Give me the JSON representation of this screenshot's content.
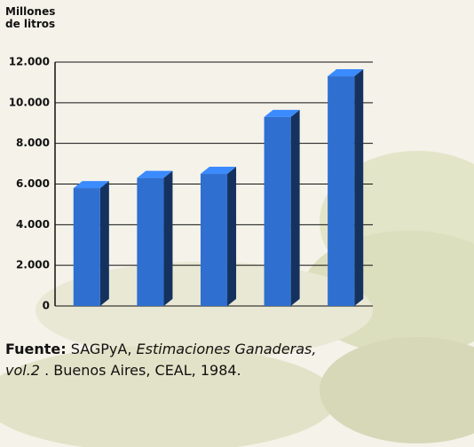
{
  "chart_data": {
    "type": "bar3d",
    "ylabel": "Millones de litros",
    "categories": [
      null,
      null,
      null,
      null,
      null
    ],
    "values": [
      5800,
      6300,
      6500,
      9300,
      11300
    ],
    "color": "#2f6fd0",
    "ylim": [
      0,
      12000
    ],
    "yticks": [
      0,
      {
        "value": 2000,
        "label": "2.000"
      },
      {
        "value": 4000,
        "label": "4.000"
      },
      {
        "value": 6000,
        "label": "6.000"
      },
      {
        "value": 8000,
        "label": "8.000"
      },
      {
        "value": 10000,
        "label": "10.000"
      },
      {
        "value": 12000,
        "label": "12.000"
      }
    ],
    "grid": true,
    "source": {
      "label": "Fuente:",
      "segments": [
        {
          "text": "SAGPyA,",
          "style": "normal"
        },
        {
          "text": "Estimaciones Ganaderas, vol.2",
          "style": "italic"
        },
        {
          "text": ". Buenos Aires, CEAL, 1984.",
          "style": "normal"
        }
      ]
    }
  }
}
